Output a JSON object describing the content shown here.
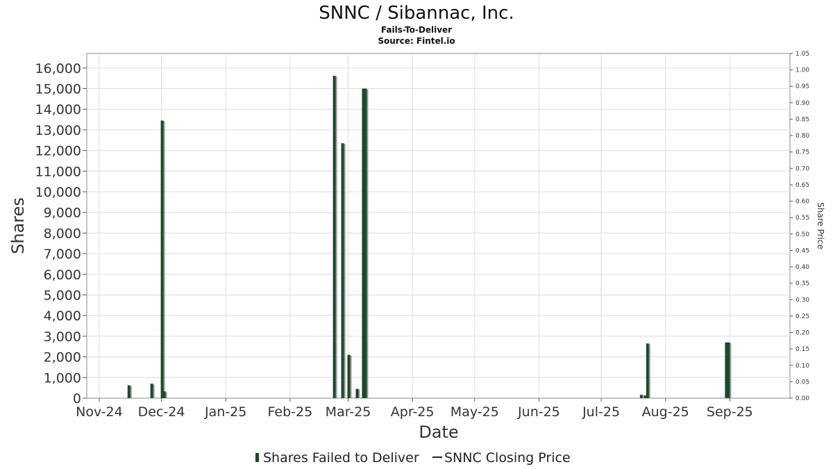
{
  "chart_data": {
    "type": "bar",
    "title": "SNNC / Sibannac, Inc.",
    "subtitle": "Fails-To-Deliver",
    "source": "Source: Fintel.io",
    "xlabel": "Date",
    "ylabel": "Shares",
    "y2label": "Share Price",
    "xlim": [
      "2024-10-26",
      "2025-09-30"
    ],
    "ylim": [
      0,
      16700
    ],
    "y2lim": [
      0,
      1.05
    ],
    "x_ticks": [
      {
        "date": "2024-11-01",
        "label": "Nov-24"
      },
      {
        "date": "2024-12-01",
        "label": "Dec-24"
      },
      {
        "date": "2025-01-01",
        "label": "Jan-25"
      },
      {
        "date": "2025-02-01",
        "label": "Feb-25"
      },
      {
        "date": "2025-03-01",
        "label": "Mar-25"
      },
      {
        "date": "2025-04-01",
        "label": "Apr-25"
      },
      {
        "date": "2025-05-01",
        "label": "May-25"
      },
      {
        "date": "2025-06-01",
        "label": "Jun-25"
      },
      {
        "date": "2025-07-01",
        "label": "Jul-25"
      },
      {
        "date": "2025-08-01",
        "label": "Aug-25"
      },
      {
        "date": "2025-09-01",
        "label": "Sep-25"
      }
    ],
    "y_ticks": [
      0,
      1000,
      2000,
      3000,
      4000,
      5000,
      6000,
      7000,
      8000,
      9000,
      10000,
      11000,
      12000,
      13000,
      14000,
      15000,
      16000
    ],
    "y_tick_labels": [
      "0",
      "1,000",
      "2,000",
      "3,000",
      "4,000",
      "5,000",
      "6,000",
      "7,000",
      "8,000",
      "9,000",
      "10,000",
      "11,000",
      "12,000",
      "13,000",
      "14,000",
      "15,000",
      "16,000"
    ],
    "y2_ticks": [
      "0.00",
      "0.05",
      "0.10",
      "0.15",
      "0.20",
      "0.25",
      "0.30",
      "0.35",
      "0.40",
      "0.45",
      "0.50",
      "0.55",
      "0.60",
      "0.65",
      "0.70",
      "0.75",
      "0.80",
      "0.85",
      "0.90",
      "0.95",
      "1.00",
      "1.05"
    ],
    "grid": true,
    "series": [
      {
        "name": "Shares Failed to Deliver",
        "color": "#1a4a2a",
        "x": [
          "2024-11-15",
          "2024-11-26",
          "2024-12-01",
          "2024-12-02",
          "2025-02-22",
          "2025-02-26",
          "2025-03-01",
          "2025-03-05",
          "2025-03-08",
          "2025-03-09",
          "2025-07-20",
          "2025-07-22",
          "2025-07-23",
          "2025-08-30",
          "2025-08-31"
        ],
        "values": [
          620,
          700,
          13450,
          330,
          15620,
          12350,
          2100,
          450,
          15000,
          15000,
          160,
          130,
          2650,
          2700,
          2700
        ]
      },
      {
        "name": "SNNC Closing Price",
        "color": "#222222",
        "x": [],
        "values": []
      }
    ],
    "legend": "bottom-center"
  },
  "legend": {
    "items": [
      {
        "label": "Shares Failed to Deliver",
        "color": "#1a4a2a"
      },
      {
        "label": "SNNC Closing Price",
        "color": "#222222"
      }
    ]
  }
}
